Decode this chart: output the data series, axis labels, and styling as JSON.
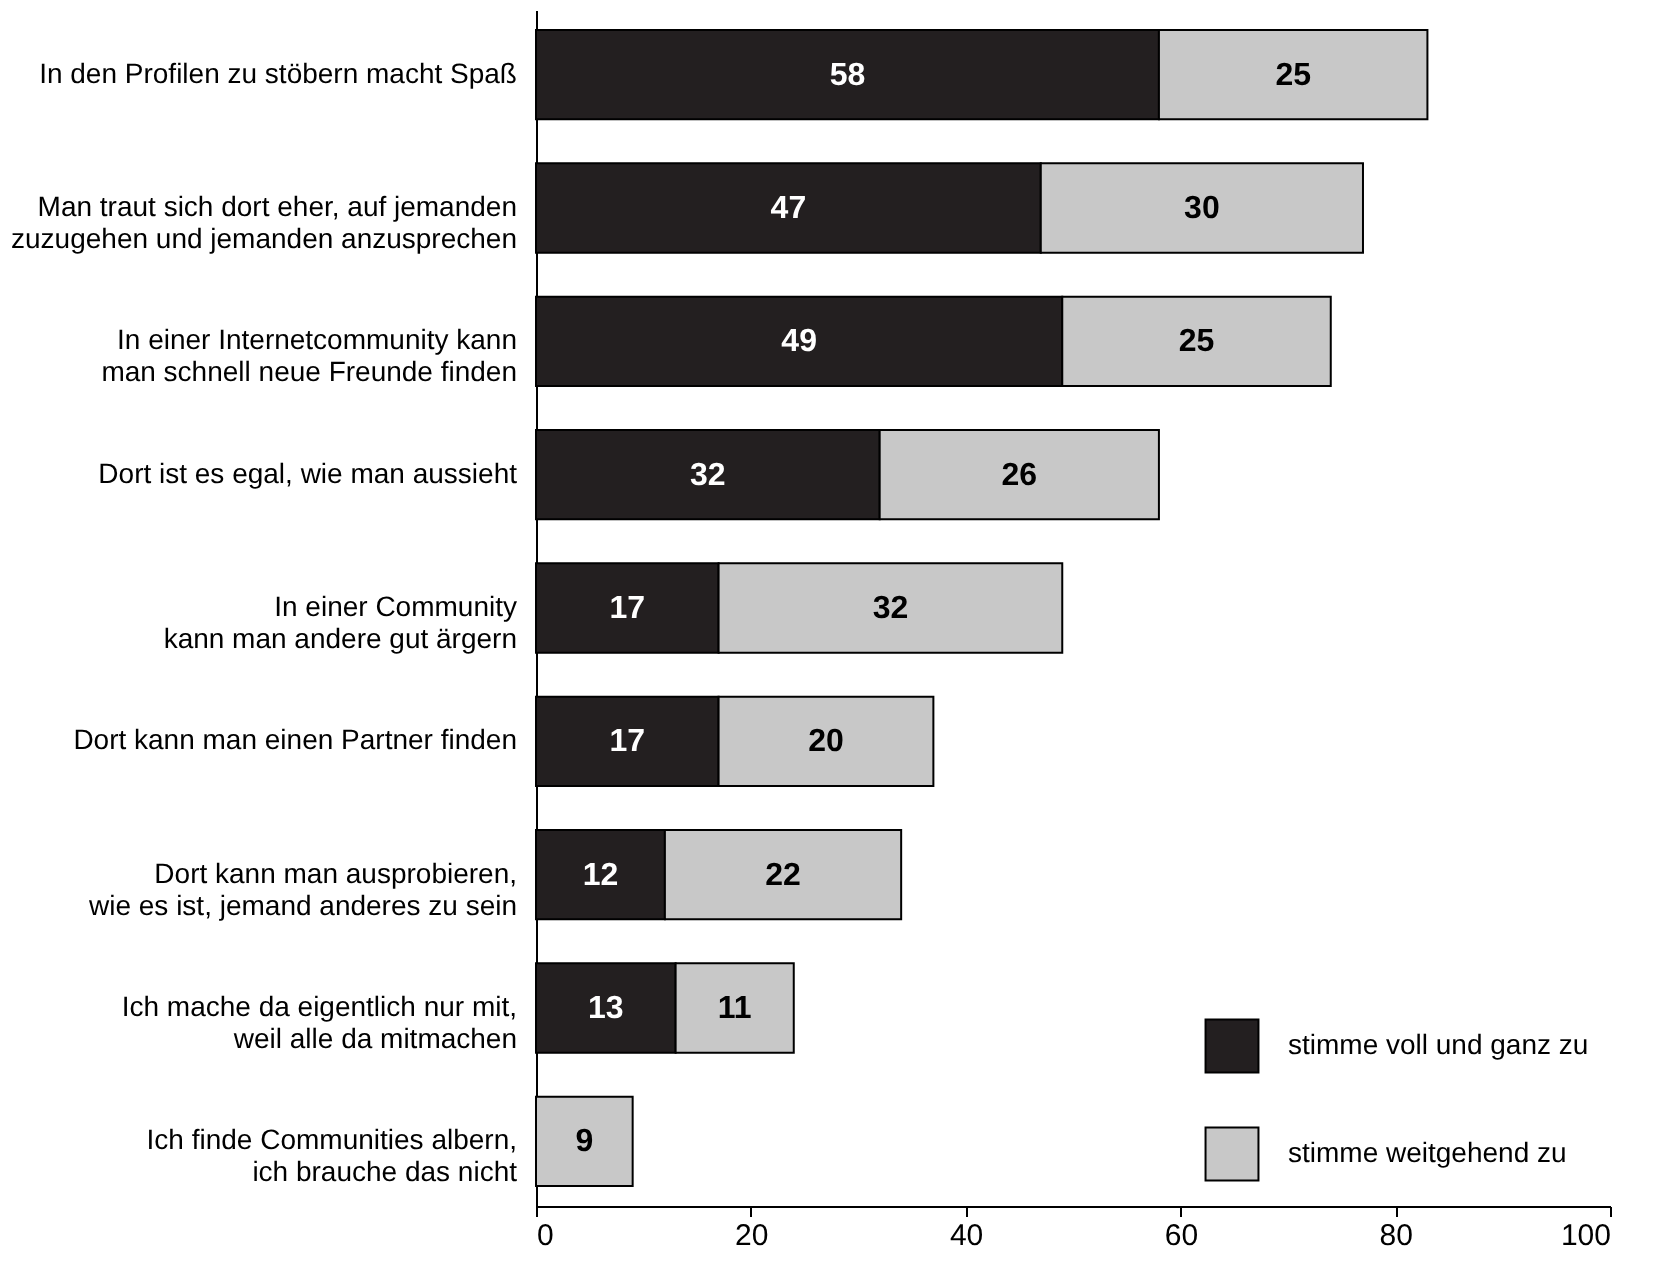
{
  "chart_data": {
    "type": "bar",
    "orientation": "horizontal",
    "stacked": true,
    "data_labels": true,
    "legend": "bottom right",
    "grid": false,
    "categories": [
      "In den Profilen zu stöbern macht Spaß",
      "Man traut sich dort eher, auf jemanden\nzuzugehen und jemanden anzusprechen",
      "In einer Internetcommunity kann\nman schnell neue Freunde finden",
      "Dort ist es egal, wie man aussieht",
      "In einer Community\nkann man andere gut ärgern",
      "Dort kann man einen Partner finden",
      "Dort kann man ausprobieren,\nwie es ist, jemand anderes zu sein",
      "Ich mache da eigentlich nur mit,\nweil alle da mitmachen",
      "Ich finde Communities albern,\nich brauche das nicht"
    ],
    "series": [
      {
        "name": "stimme voll und ganz zu",
        "color": "#231f20",
        "values": [
          58,
          47,
          49,
          32,
          17,
          17,
          12,
          13,
          null
        ]
      },
      {
        "name": "stimme weitgehend zu",
        "color": "#c8c8c8",
        "values": [
          25,
          30,
          25,
          26,
          32,
          20,
          22,
          11,
          9
        ]
      }
    ],
    "xlim": [
      0,
      100
    ],
    "xticks": [
      0,
      20,
      40,
      60,
      80,
      100
    ]
  }
}
